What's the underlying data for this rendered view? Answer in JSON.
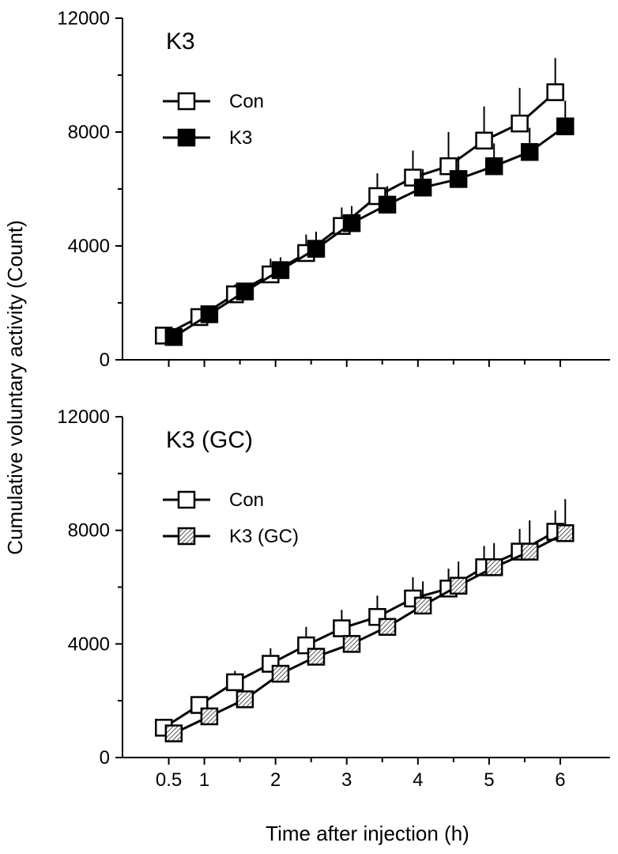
{
  "chart_data": {
    "type": "line",
    "ylabel": "Cumulative voluntary activity (Count)",
    "xlabel": "Time after injection (h)",
    "x_tick_labels": [
      "0.5",
      "1",
      "2",
      "3",
      "4",
      "5",
      "6"
    ],
    "x_ticks": [
      0.5,
      1,
      2,
      3,
      4,
      5,
      6
    ],
    "x_minor_ticks": [
      1.5,
      2.5,
      3.5,
      4.5,
      5.5
    ],
    "xlim": [
      -0.15,
      6.7
    ],
    "panels": [
      {
        "title": "K3",
        "ylim": [
          0,
          12000
        ],
        "y_ticks": [
          0,
          4000,
          8000,
          12000
        ],
        "y_tick_labels": [
          "0",
          "4000",
          "8000",
          "12000"
        ],
        "y_minor_ticks": [
          2000,
          6000,
          10000
        ],
        "legend_position": "top-left",
        "x": [
          0.5,
          1,
          1.5,
          2,
          2.5,
          3,
          3.5,
          4,
          4.5,
          5,
          5.5,
          6
        ],
        "series": [
          {
            "name": "Con",
            "marker": "open-square",
            "offset": -0.07,
            "values": [
              850,
              1500,
              2300,
              3000,
              3750,
              4700,
              5750,
              6400,
              6800,
              7700,
              8300,
              9400
            ],
            "errors": [
              0,
              200,
              350,
              550,
              650,
              650,
              800,
              950,
              1200,
              1200,
              1250,
              1200
            ]
          },
          {
            "name": "K3",
            "marker": "filled-square",
            "offset": 0.07,
            "values": [
              800,
              1600,
              2400,
              3150,
              3900,
              4800,
              5450,
              6050,
              6350,
              6800,
              7300,
              8200
            ],
            "errors": [
              0,
              150,
              300,
              450,
              600,
              600,
              650,
              650,
              800,
              800,
              850,
              900
            ]
          }
        ]
      },
      {
        "title": "K3 (GC)",
        "ylim": [
          0,
          12000
        ],
        "y_ticks": [
          0,
          4000,
          8000,
          12000
        ],
        "y_tick_labels": [
          "0",
          "4000",
          "8000",
          "12000"
        ],
        "y_minor_ticks": [
          2000,
          6000,
          10000
        ],
        "legend_position": "top-left",
        "x": [
          0.5,
          1,
          1.5,
          2,
          2.5,
          3,
          3.5,
          4,
          4.5,
          5,
          5.5,
          6
        ],
        "series": [
          {
            "name": "Con",
            "marker": "open-square",
            "offset": -0.07,
            "values": [
              1050,
              1850,
              2650,
              3300,
              3950,
              4550,
              4950,
              5600,
              5950,
              6700,
              7250,
              7950
            ],
            "errors": [
              0,
              200,
              400,
              550,
              650,
              650,
              750,
              750,
              700,
              750,
              800,
              750
            ]
          },
          {
            "name": "K3 (GC)",
            "marker": "hatched-square",
            "offset": 0.07,
            "values": [
              850,
              1450,
              2050,
              2950,
              3550,
              4000,
              4600,
              5350,
              6050,
              6700,
              7250,
              7900
            ],
            "errors": [
              0,
              0,
              0,
              0,
              0,
              0,
              0,
              850,
              850,
              850,
              1100,
              1200
            ]
          }
        ]
      }
    ]
  }
}
